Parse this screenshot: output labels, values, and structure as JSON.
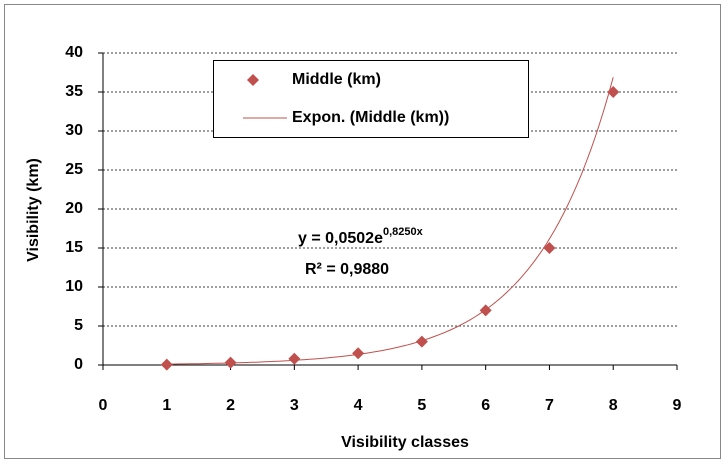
{
  "chart_data": {
    "type": "scatter",
    "x_label": "Visibility classes",
    "y_label": "Visibility (km)",
    "series": [
      {
        "name": "Middle (km)",
        "color": "#c0504d",
        "x": [
          1,
          2,
          3,
          4,
          5,
          6,
          7,
          8
        ],
        "values": [
          0.05,
          0.3,
          0.8,
          1.5,
          3,
          7,
          15,
          35
        ]
      }
    ],
    "trendline": {
      "name": "Expon. (Middle (km))",
      "color": "#c0504d",
      "a": 0.0502,
      "b": 0.825,
      "equation": "y = 0,0502e",
      "exponent": "0,8250x",
      "r_squared": "R² = 0,9880"
    },
    "xlim": [
      0,
      9
    ],
    "xticks": [
      0,
      1,
      2,
      3,
      4,
      5,
      6,
      7,
      8,
      9
    ],
    "ylim": [
      0,
      40
    ],
    "yticks": [
      0,
      5,
      10,
      15,
      20,
      25,
      30,
      35,
      40
    ],
    "grid": true,
    "legend": "top"
  }
}
